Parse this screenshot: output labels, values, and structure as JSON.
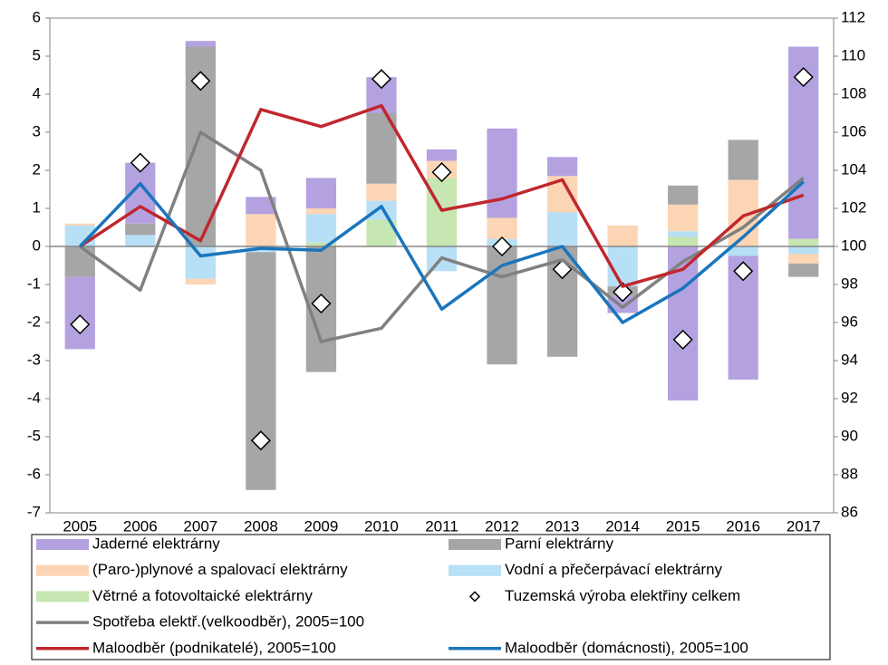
{
  "chart_data": {
    "type": "bar",
    "categories": [
      "2005",
      "2006",
      "2007",
      "2008",
      "2009",
      "2010",
      "2011",
      "2012",
      "2013",
      "2014",
      "2015",
      "2016",
      "2017"
    ],
    "ylim": [
      -7,
      6
    ],
    "yticks": [
      -7,
      -6,
      -5,
      -4,
      -3,
      -2,
      -1,
      0,
      1,
      2,
      3,
      4,
      5,
      6
    ],
    "y2lim": [
      86,
      112
    ],
    "y2ticks": [
      86,
      88,
      90,
      92,
      94,
      96,
      98,
      100,
      102,
      104,
      106,
      108,
      110,
      112
    ],
    "stacked": true,
    "series": [
      {
        "name": "Jaderné elektrárny",
        "type": "bar",
        "color": "#b4a2e0",
        "values": [
          -1.9,
          1.6,
          0.15,
          0.45,
          0.8,
          0.95,
          0.3,
          2.35,
          0.5,
          -0.45,
          -4.05,
          -3.25,
          5.05
        ]
      },
      {
        "name": "Parní elektrárny",
        "type": "bar",
        "color": "#a6a6a6",
        "values": [
          -0.8,
          0.3,
          5.25,
          -6.25,
          -3.3,
          1.85,
          0,
          -3.1,
          -2.9,
          -0.25,
          0.5,
          1.05,
          -0.35
        ]
      },
      {
        "name": "(Paro-)plynové a spalovací  elektrárny",
        "type": "bar",
        "color": "#fcd5b4",
        "values": [
          0.05,
          0,
          -0.15,
          0.85,
          0.15,
          0.45,
          0.45,
          0.55,
          0.95,
          0.55,
          0.7,
          1.75,
          -0.25
        ]
      },
      {
        "name": "Vodní a přečerpávací  elektrárny",
        "type": "bar",
        "color": "#b7dff5",
        "values": [
          0.55,
          0.3,
          -0.85,
          -0.15,
          0.75,
          0.5,
          -0.65,
          0.2,
          0.9,
          -1.05,
          0.15,
          -0.25,
          -0.2
        ]
      },
      {
        "name": "Větrné a fotovoltaické elektrárny",
        "type": "bar",
        "color": "#c6e6b2",
        "values": [
          0,
          0,
          0,
          0,
          0.1,
          0.7,
          1.8,
          0,
          0,
          0,
          0.25,
          0,
          0.2
        ]
      },
      {
        "name": "Tuzemská výroba elektřiny celkem",
        "type": "scatter",
        "color": "#000000",
        "values": [
          -2.05,
          2.2,
          4.35,
          -5.1,
          -1.5,
          4.4,
          1.95,
          0,
          -0.6,
          -1.2,
          -2.45,
          -0.65,
          4.45
        ]
      },
      {
        "name": "Spotřeba elektř.(velkoodběr), 2005=100",
        "type": "line",
        "axis": "y2",
        "color": "#808080",
        "values": [
          100,
          97.7,
          106,
          104,
          95,
          95.7,
          99.4,
          98.4,
          99.3,
          96.8,
          99.2,
          101,
          103.6
        ]
      },
      {
        "name": "Maloodběr (podnikatelé), 2005=100",
        "type": "line",
        "axis": "y2",
        "color": "#c0272d",
        "values": [
          100,
          102.1,
          100.3,
          107.2,
          106.3,
          107.4,
          101.9,
          102.5,
          103.5,
          97.9,
          98.8,
          101.6,
          102.7
        ]
      },
      {
        "name": "Maloodběr (domácnosti), 2005=100",
        "type": "line",
        "axis": "y2",
        "color": "#1a75bc",
        "values": [
          100,
          103.3,
          99.5,
          99.9,
          99.8,
          102.1,
          96.7,
          99,
          100,
          96,
          97.8,
          100.5,
          103.4
        ]
      }
    ]
  }
}
